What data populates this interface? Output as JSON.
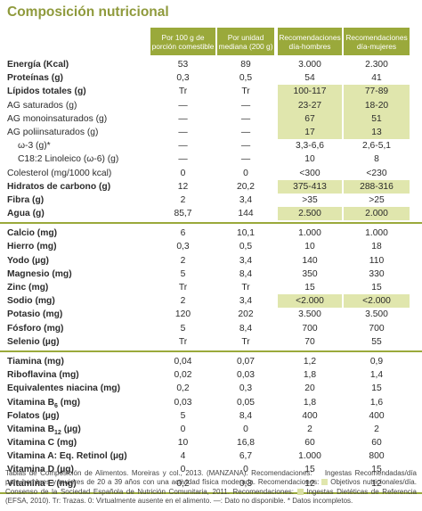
{
  "title": "Composición nutricional",
  "headers": {
    "c1": "Por 100 g de porción comestible",
    "c2": "Por unidad mediana (200 g)",
    "c3": "Recomendaciones día-hombres",
    "c4": "Recomendaciones día-mujeres"
  },
  "highlight_color": "#e0e6ad",
  "accent_color": "#9aa93b",
  "rows": [
    {
      "label": "Energía (Kcal)",
      "bold": true,
      "v1": "53",
      "v2": "89",
      "v3": "3.000",
      "v4": "2.300"
    },
    {
      "label": "Proteínas (g)",
      "bold": true,
      "v1": "0,3",
      "v2": "0,5",
      "v3": "54",
      "v4": "41"
    },
    {
      "label": "Lípidos totales (g)",
      "bold": true,
      "v1": "Tr",
      "v2": "Tr",
      "v3": "100-117",
      "v4": "77-89",
      "hl": true
    },
    {
      "label": "AG saturados (g)",
      "bold": false,
      "v1": "—",
      "v2": "—",
      "v3": "23-27",
      "v4": "18-20",
      "hl": true
    },
    {
      "label": "AG monoinsaturados (g)",
      "bold": false,
      "v1": "—",
      "v2": "—",
      "v3": "67",
      "v4": "51",
      "hl": true
    },
    {
      "label": "AG poliinsaturados (g)",
      "bold": false,
      "v1": "—",
      "v2": "—",
      "v3": "17",
      "v4": "13",
      "hl": true
    },
    {
      "label": "ω-3 (g)*",
      "bold": false,
      "ind": true,
      "v1": "—",
      "v2": "—",
      "v3": "3,3-6,6",
      "v4": "2,6-5,1"
    },
    {
      "label": "C18:2 Linoleico (ω-6) (g)",
      "bold": false,
      "ind": true,
      "v1": "—",
      "v2": "—",
      "v3": "10",
      "v4": "8"
    },
    {
      "label": "Colesterol (mg/1000 kcal)",
      "bold": false,
      "v1": "0",
      "v2": "0",
      "v3": "<300",
      "v4": "<230"
    },
    {
      "label": "Hidratos de carbono (g)",
      "bold": true,
      "v1": "12",
      "v2": "20,2",
      "v3": "375-413",
      "v4": "288-316",
      "hl": true
    },
    {
      "label": "Fibra (g)",
      "bold": true,
      "v1": "2",
      "v2": "3,4",
      "v3": ">35",
      "v4": ">25"
    },
    {
      "label": "Agua (g)",
      "bold": true,
      "v1": "85,7",
      "v2": "144",
      "v3": "2.500",
      "v4": "2.000",
      "hl": true
    },
    {
      "label": "Calcio (mg)",
      "bold": true,
      "v1": "6",
      "v2": "10,1",
      "v3": "1.000",
      "v4": "1.000"
    },
    {
      "label": "Hierro (mg)",
      "bold": true,
      "v1": "0,3",
      "v2": "0,5",
      "v3": "10",
      "v4": "18"
    },
    {
      "label": "Yodo (µg)",
      "bold": true,
      "v1": "2",
      "v2": "3,4",
      "v3": "140",
      "v4": "110"
    },
    {
      "label": "Magnesio (mg)",
      "bold": true,
      "v1": "5",
      "v2": "8,4",
      "v3": "350",
      "v4": "330"
    },
    {
      "label": "Zinc (mg)",
      "bold": true,
      "v1": "Tr",
      "v2": "Tr",
      "v3": "15",
      "v4": "15"
    },
    {
      "label": "Sodio (mg)",
      "bold": true,
      "v1": "2",
      "v2": "3,4",
      "v3": "<2.000",
      "v4": "<2.000",
      "hl": true
    },
    {
      "label": "Potasio (mg)",
      "bold": true,
      "v1": "120",
      "v2": "202",
      "v3": "3.500",
      "v4": "3.500"
    },
    {
      "label": "Fósforo (mg)",
      "bold": true,
      "v1": "5",
      "v2": "8,4",
      "v3": "700",
      "v4": "700"
    },
    {
      "label": "Selenio (µg)",
      "bold": true,
      "v1": "Tr",
      "v2": "Tr",
      "v3": "70",
      "v4": "55"
    },
    {
      "label": "Tiamina (mg)",
      "bold": true,
      "v1": "0,04",
      "v2": "0,07",
      "v3": "1,2",
      "v4": "0,9"
    },
    {
      "label": "Riboflavina (mg)",
      "bold": true,
      "v1": "0,02",
      "v2": "0,03",
      "v3": "1,8",
      "v4": "1,4"
    },
    {
      "label": "Equivalentes niacina (mg)",
      "bold": true,
      "v1": "0,2",
      "v2": "0,3",
      "v3": "20",
      "v4": "15"
    },
    {
      "label": "Vitamina B",
      "sub": "6",
      "tail": " (mg)",
      "bold": true,
      "v1": "0,03",
      "v2": "0,05",
      "v3": "1,8",
      "v4": "1,6"
    },
    {
      "label": "Folatos (µg)",
      "bold": true,
      "v1": "5",
      "v2": "8,4",
      "v3": "400",
      "v4": "400"
    },
    {
      "label": "Vitamina B",
      "sub": "12",
      "tail": " (µg)",
      "bold": true,
      "v1": "0",
      "v2": "0",
      "v3": "2",
      "v4": "2"
    },
    {
      "label": "Vitamina C (mg)",
      "bold": true,
      "v1": "10",
      "v2": "16,8",
      "v3": "60",
      "v4": "60"
    },
    {
      "label": "Vitamina A: Eq. Retinol (µg)",
      "bold": true,
      "v1": "4",
      "v2": "6,7",
      "v3": "1.000",
      "v4": "800"
    },
    {
      "label": "Vitamina D (µg)",
      "bold": true,
      "v1": "0",
      "v2": "0",
      "v3": "15",
      "v4": "15"
    },
    {
      "label": "Vitamina E (mg)",
      "bold": true,
      "v1": "0,2",
      "v2": "0,3",
      "v3": "12",
      "v4": "12"
    }
  ],
  "sections": [
    [
      0,
      11
    ],
    [
      12,
      20
    ],
    [
      21,
      30
    ]
  ],
  "footer": {
    "p1": "Tablas de Composición de Alimentos. Moreiras y col., 2013. (MANZANA). Recomendaciones:",
    "p2": "Ingestas Recomendadas/día para hombres y mujeres de 20 a 39 años con una actividad física moderada. Recomendaciones:",
    "p3": "Objetivos nutricionales/día. Consenso de la Sociedad Española de Nutrición Comunitaria, 2011. Recomendaciones:",
    "p4": "Ingestas Dietéticas de Referencia (EFSA, 2010). Tr: Trazas. 0: Virtualmente ausente en el alimento. —: Dato no disponible. * Datos incompletos."
  }
}
